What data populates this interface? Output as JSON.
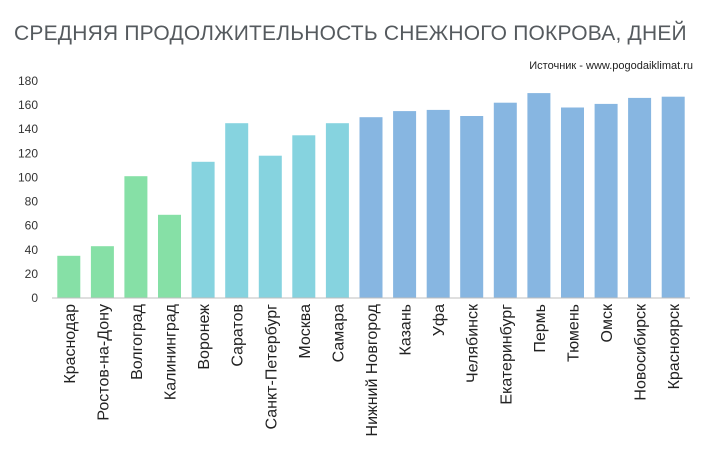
{
  "title": "СРЕДНЯЯ ПРОДОЛЖИТЕЛЬНОСТЬ СНЕЖНОГО ПОКРОВА, ДНЕЙ",
  "source": "Источник - www.pogodaiklimat.ru",
  "colors": {
    "green": "#86e0a6",
    "cyan": "#86d3df",
    "blue": "#87b6e1",
    "axis": "#bfbfbf",
    "title": "#555a5e"
  },
  "chart_data": {
    "type": "bar",
    "title": "СРЕДНЯЯ ПРОДОЛЖИТЕЛЬНОСТЬ СНЕЖНОГО ПОКРОВА, ДНЕЙ",
    "xlabel": "",
    "ylabel": "",
    "ylim": [
      0,
      180
    ],
    "yticks": [
      0,
      20,
      40,
      60,
      80,
      100,
      120,
      140,
      160,
      180
    ],
    "grid": false,
    "categories": [
      "Краснодар",
      "Ростов-на-Дону",
      "Волгоград",
      "Калининград",
      "Воронеж",
      "Саратов",
      "Санкт-Петербург",
      "Москва",
      "Самара",
      "Нижний Новгород",
      "Казань",
      "Уфа",
      "Челябинск",
      "Екатеринбург",
      "Пермь",
      "Тюмень",
      "Омск",
      "Новосибирск",
      "Красноярск"
    ],
    "values": [
      35,
      43,
      101,
      69,
      113,
      145,
      118,
      135,
      145,
      150,
      155,
      156,
      151,
      162,
      170,
      158,
      161,
      166,
      167
    ],
    "bar_colors": [
      "green",
      "green",
      "green",
      "green",
      "cyan",
      "cyan",
      "cyan",
      "cyan",
      "cyan",
      "blue",
      "blue",
      "blue",
      "blue",
      "blue",
      "blue",
      "blue",
      "blue",
      "blue",
      "blue"
    ]
  }
}
